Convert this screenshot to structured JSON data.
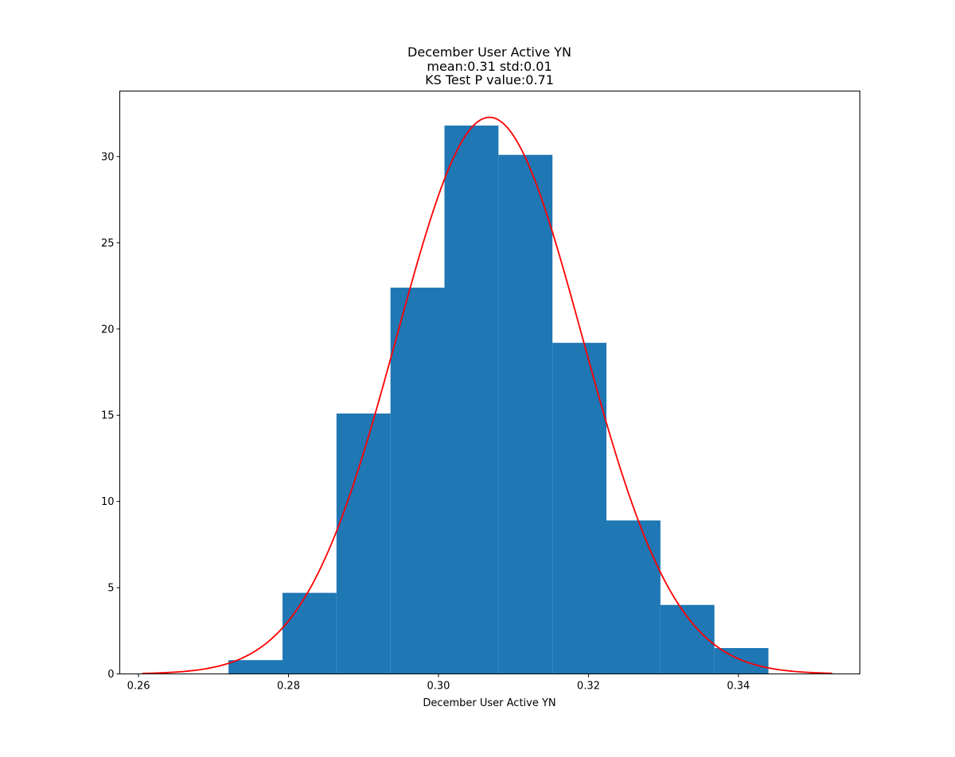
{
  "chart_data": {
    "type": "bar",
    "title_lines": [
      "December User Active YN",
      "mean:0.31 std:0.01",
      "KS Test P value:0.71"
    ],
    "xlabel": "December User Active YN",
    "ylabel": "",
    "xlim": [
      0.2575,
      0.3562
    ],
    "ylim": [
      0,
      33.8
    ],
    "xticks": [
      0.26,
      0.28,
      0.3,
      0.32,
      0.34
    ],
    "xtick_labels": [
      "0.26",
      "0.28",
      "0.30",
      "0.32",
      "0.34"
    ],
    "yticks": [
      0,
      5,
      10,
      15,
      20,
      25,
      30
    ],
    "ytick_labels": [
      "0",
      "5",
      "10",
      "15",
      "20",
      "25",
      "30"
    ],
    "grid": false,
    "histogram": {
      "bin_edges": [
        0.272,
        0.2792,
        0.2864,
        0.2936,
        0.3008,
        0.308,
        0.3152,
        0.3224,
        0.3296,
        0.3368,
        0.344
      ],
      "values": [
        0.8,
        4.7,
        15.1,
        22.4,
        31.8,
        30.1,
        19.2,
        8.9,
        4.0,
        1.5
      ],
      "color": "#1f77b4"
    },
    "fit_curve": {
      "type": "normal_pdf",
      "mean": 0.3068,
      "std": 0.01236,
      "x_range": [
        0.2605,
        0.3525
      ],
      "color": "#ff0000"
    }
  }
}
